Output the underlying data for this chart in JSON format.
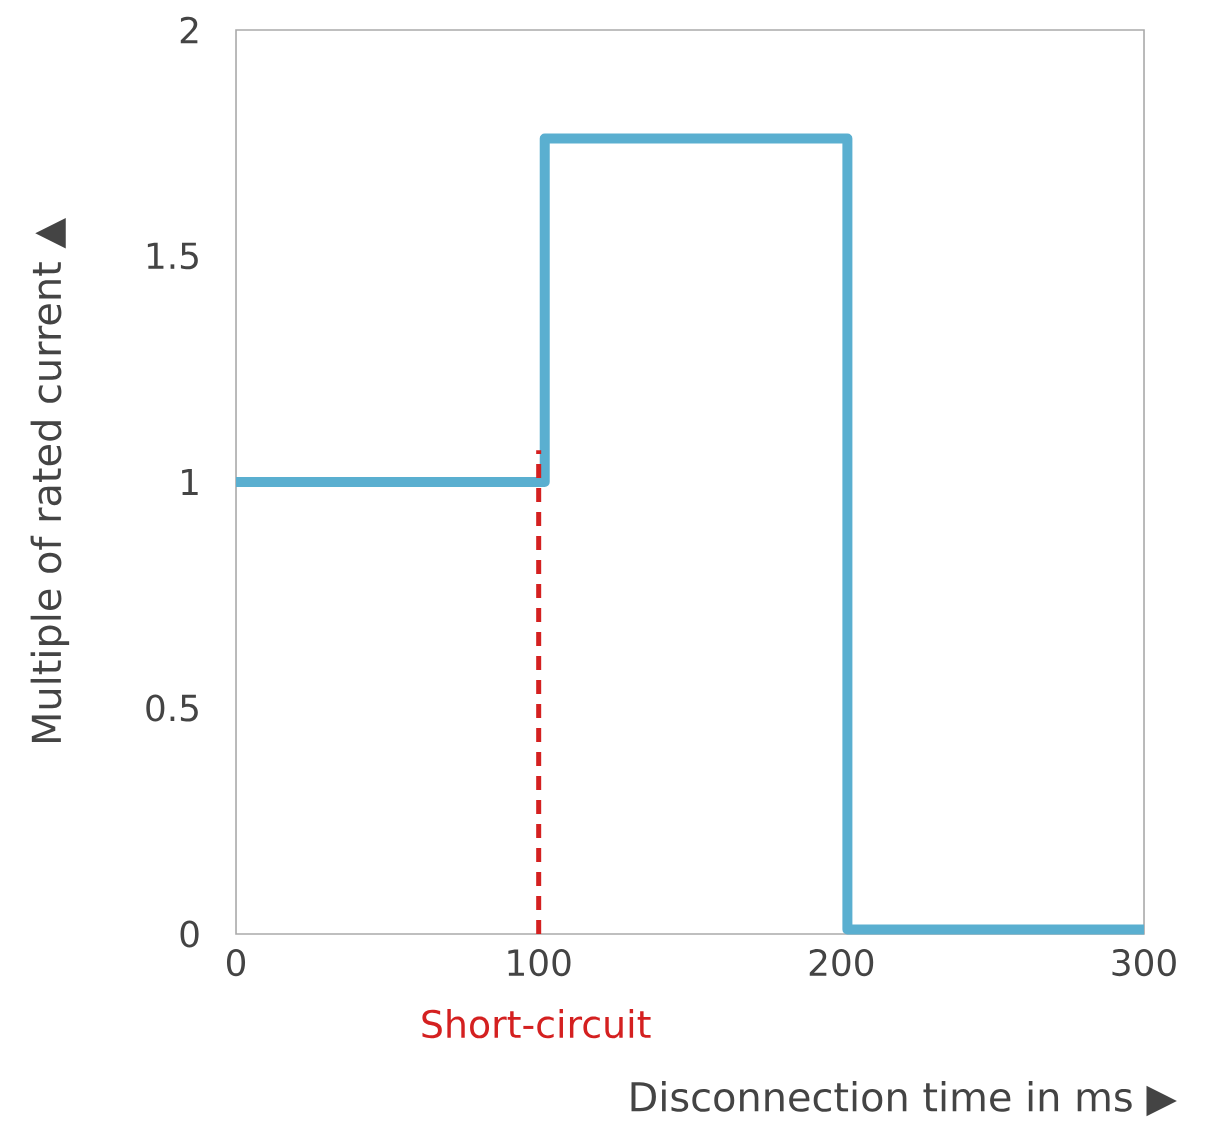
{
  "chart_data": {
    "type": "step",
    "xlabel": "Disconnection time in ms ▶",
    "ylabel": "Multiple of rated current ▲",
    "xlim": [
      0,
      300
    ],
    "xticks": [
      0,
      100,
      200,
      300
    ],
    "ylim": [
      0,
      2
    ],
    "yticks": [
      0,
      0.5,
      1,
      1.5,
      2
    ],
    "grid": false,
    "series": [
      {
        "color": "#5aafd0",
        "x": [
          0,
          102,
          202,
          300
        ],
        "values": [
          1,
          1.76,
          0.01,
          0.01
        ]
      },
      {
        "type": "line",
        "color": "#d42020",
        "line_style": "dashed",
        "x": [
          100,
          100
        ],
        "values": [
          0,
          1.07
        ]
      }
    ],
    "annotations": [
      "Short-circuit"
    ]
  }
}
